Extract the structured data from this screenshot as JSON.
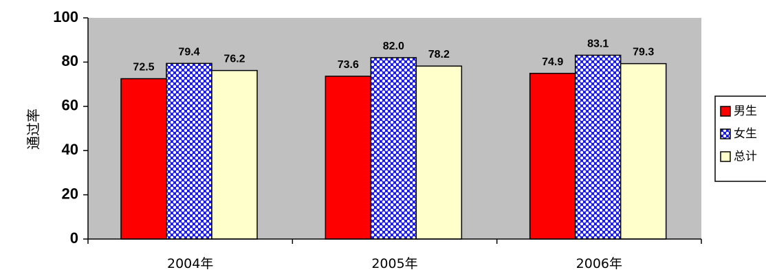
{
  "chart_data": {
    "type": "bar",
    "title": "",
    "xlabel": "",
    "ylabel": "通过率",
    "categories": [
      "2004年",
      "2005年",
      "2006年"
    ],
    "ylim": [
      0,
      100
    ],
    "yticks": [
      "0",
      "20",
      "40",
      "60",
      "80",
      "100"
    ],
    "series": [
      {
        "name": "男生",
        "values": [
          72.5,
          73.6,
          74.9
        ],
        "labels": [
          "72.5",
          "73.6",
          "74.9"
        ],
        "color": "#ff0000",
        "pattern": "solid"
      },
      {
        "name": "女生",
        "values": [
          79.4,
          82.0,
          83.1
        ],
        "labels": [
          "79.4",
          "82.0",
          "83.1"
        ],
        "color": "#2222ee",
        "pattern": "dots"
      },
      {
        "name": "总计",
        "values": [
          76.2,
          78.2,
          79.3
        ],
        "labels": [
          "76.2",
          "78.2",
          "79.3"
        ],
        "color": "#ffffcc",
        "pattern": "solid"
      }
    ],
    "plot_background": "#c0c0c0",
    "grid": false,
    "legend_position": "right"
  }
}
